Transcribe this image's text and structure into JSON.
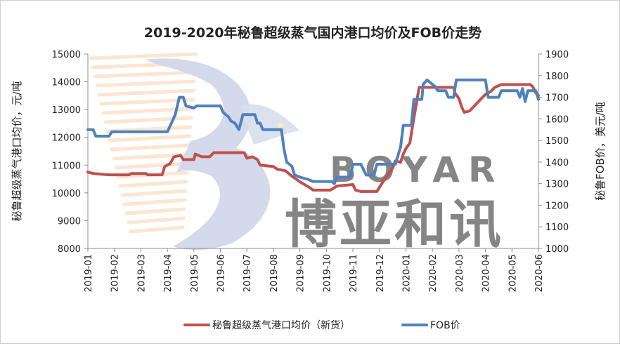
{
  "chart_data": {
    "type": "line",
    "title": "2019-2020年秘鲁超级蒸气国内港口均价及FOB价走势",
    "ylabel_left": "秘鲁超级蒸气港口均价，元/吨",
    "ylabel_right": "秘鲁FOB价，美元/吨",
    "ylim_left": [
      8000,
      15000
    ],
    "ylim_right": [
      1000,
      1900
    ],
    "yticks_left": [
      8000,
      9000,
      10000,
      11000,
      12000,
      13000,
      14000,
      15000
    ],
    "yticks_right": [
      1000,
      1100,
      1200,
      1300,
      1400,
      1500,
      1600,
      1700,
      1800,
      1900
    ],
    "x_categories": [
      "2019-01",
      "2019-02",
      "2019-03",
      "2019-04",
      "2019-05",
      "2019-06",
      "2019-07",
      "2019-08",
      "2019-09",
      "2019-10",
      "2019-11",
      "2019-12",
      "2020-01",
      "2020-02",
      "2020-03",
      "2020-04",
      "2020-05",
      "2020-06"
    ],
    "grid": false,
    "legend_position": "bottom",
    "watermark": {
      "latin": "BOYAR",
      "chinese": "博亚和讯"
    },
    "series": [
      {
        "name": "秘鲁超级蒸气港口均价（新货）",
        "axis": "left",
        "color": "#C0504D",
        "points": [
          [
            0.0,
            10750
          ],
          [
            0.2,
            10700
          ],
          [
            0.8,
            10650
          ],
          [
            1.55,
            10650
          ],
          [
            1.65,
            10700
          ],
          [
            2.2,
            10700
          ],
          [
            2.25,
            10650
          ],
          [
            2.8,
            10650
          ],
          [
            2.9,
            10950
          ],
          [
            3.1,
            11050
          ],
          [
            3.25,
            11300
          ],
          [
            3.5,
            11350
          ],
          [
            3.6,
            11200
          ],
          [
            4.0,
            11200
          ],
          [
            4.05,
            11400
          ],
          [
            4.3,
            11300
          ],
          [
            4.6,
            11300
          ],
          [
            4.75,
            11450
          ],
          [
            5.9,
            11450
          ],
          [
            6.0,
            11250
          ],
          [
            6.2,
            11300
          ],
          [
            6.4,
            11200
          ],
          [
            6.5,
            11000
          ],
          [
            7.0,
            10950
          ],
          [
            7.15,
            10850
          ],
          [
            7.45,
            10800
          ],
          [
            7.7,
            10600
          ],
          [
            8.0,
            10400
          ],
          [
            8.35,
            10200
          ],
          [
            8.5,
            10100
          ],
          [
            9.15,
            10100
          ],
          [
            9.4,
            10250
          ],
          [
            10.0,
            10300
          ],
          [
            10.1,
            10100
          ],
          [
            10.3,
            10050
          ],
          [
            10.9,
            10050
          ],
          [
            11.2,
            10500
          ],
          [
            11.5,
            10900
          ],
          [
            11.6,
            11150
          ],
          [
            11.8,
            11100
          ],
          [
            11.9,
            11400
          ],
          [
            12.0,
            11600
          ],
          [
            12.15,
            11800
          ],
          [
            12.3,
            12700
          ],
          [
            12.5,
            13800
          ],
          [
            13.8,
            13800
          ],
          [
            13.85,
            13600
          ],
          [
            14.0,
            13400
          ],
          [
            14.1,
            13100
          ],
          [
            14.2,
            12900
          ],
          [
            14.4,
            12950
          ],
          [
            14.6,
            13150
          ],
          [
            14.8,
            13350
          ],
          [
            15.0,
            13550
          ],
          [
            15.2,
            13650
          ],
          [
            15.35,
            13800
          ],
          [
            15.6,
            13900
          ],
          [
            16.7,
            13900
          ],
          [
            16.8,
            13800
          ],
          [
            16.9,
            13600
          ],
          [
            17.0,
            13500
          ]
        ]
      },
      {
        "name": "FOB价",
        "axis": "right",
        "color": "#4F81BD",
        "points": [
          [
            0.0,
            1550
          ],
          [
            0.2,
            1550
          ],
          [
            0.3,
            1520
          ],
          [
            0.8,
            1520
          ],
          [
            0.9,
            1540
          ],
          [
            2.5,
            1540
          ],
          [
            3.0,
            1540
          ],
          [
            3.15,
            1580
          ],
          [
            3.3,
            1620
          ],
          [
            3.45,
            1700
          ],
          [
            3.6,
            1700
          ],
          [
            3.7,
            1660
          ],
          [
            4.0,
            1650
          ],
          [
            4.1,
            1660
          ],
          [
            5.0,
            1660
          ],
          [
            5.1,
            1630
          ],
          [
            5.3,
            1610
          ],
          [
            5.4,
            1590
          ],
          [
            5.55,
            1580
          ],
          [
            5.7,
            1550
          ],
          [
            5.85,
            1620
          ],
          [
            6.3,
            1620
          ],
          [
            6.4,
            1580
          ],
          [
            6.5,
            1580
          ],
          [
            6.6,
            1550
          ],
          [
            7.3,
            1550
          ],
          [
            7.4,
            1460
          ],
          [
            7.5,
            1400
          ],
          [
            7.7,
            1380
          ],
          [
            7.8,
            1340
          ],
          [
            8.0,
            1330
          ],
          [
            8.3,
            1320
          ],
          [
            8.5,
            1310
          ],
          [
            9.2,
            1310
          ],
          [
            9.3,
            1300
          ],
          [
            9.4,
            1330
          ],
          [
            9.9,
            1330
          ],
          [
            10.0,
            1390
          ],
          [
            10.3,
            1390
          ],
          [
            10.5,
            1340
          ],
          [
            10.8,
            1340
          ],
          [
            10.9,
            1390
          ],
          [
            11.6,
            1390
          ],
          [
            11.8,
            1470
          ],
          [
            11.9,
            1570
          ],
          [
            12.2,
            1570
          ],
          [
            12.3,
            1690
          ],
          [
            12.6,
            1690
          ],
          [
            12.65,
            1760
          ],
          [
            12.8,
            1780
          ],
          [
            13.1,
            1750
          ],
          [
            13.2,
            1730
          ],
          [
            13.5,
            1730
          ],
          [
            13.6,
            1700
          ],
          [
            13.8,
            1700
          ],
          [
            13.9,
            1780
          ],
          [
            15.0,
            1780
          ],
          [
            15.1,
            1700
          ],
          [
            15.5,
            1700
          ],
          [
            15.6,
            1730
          ],
          [
            16.2,
            1730
          ],
          [
            16.3,
            1700
          ],
          [
            16.4,
            1740
          ],
          [
            16.5,
            1680
          ],
          [
            16.6,
            1730
          ],
          [
            16.9,
            1730
          ],
          [
            17.0,
            1690
          ]
        ]
      }
    ]
  }
}
